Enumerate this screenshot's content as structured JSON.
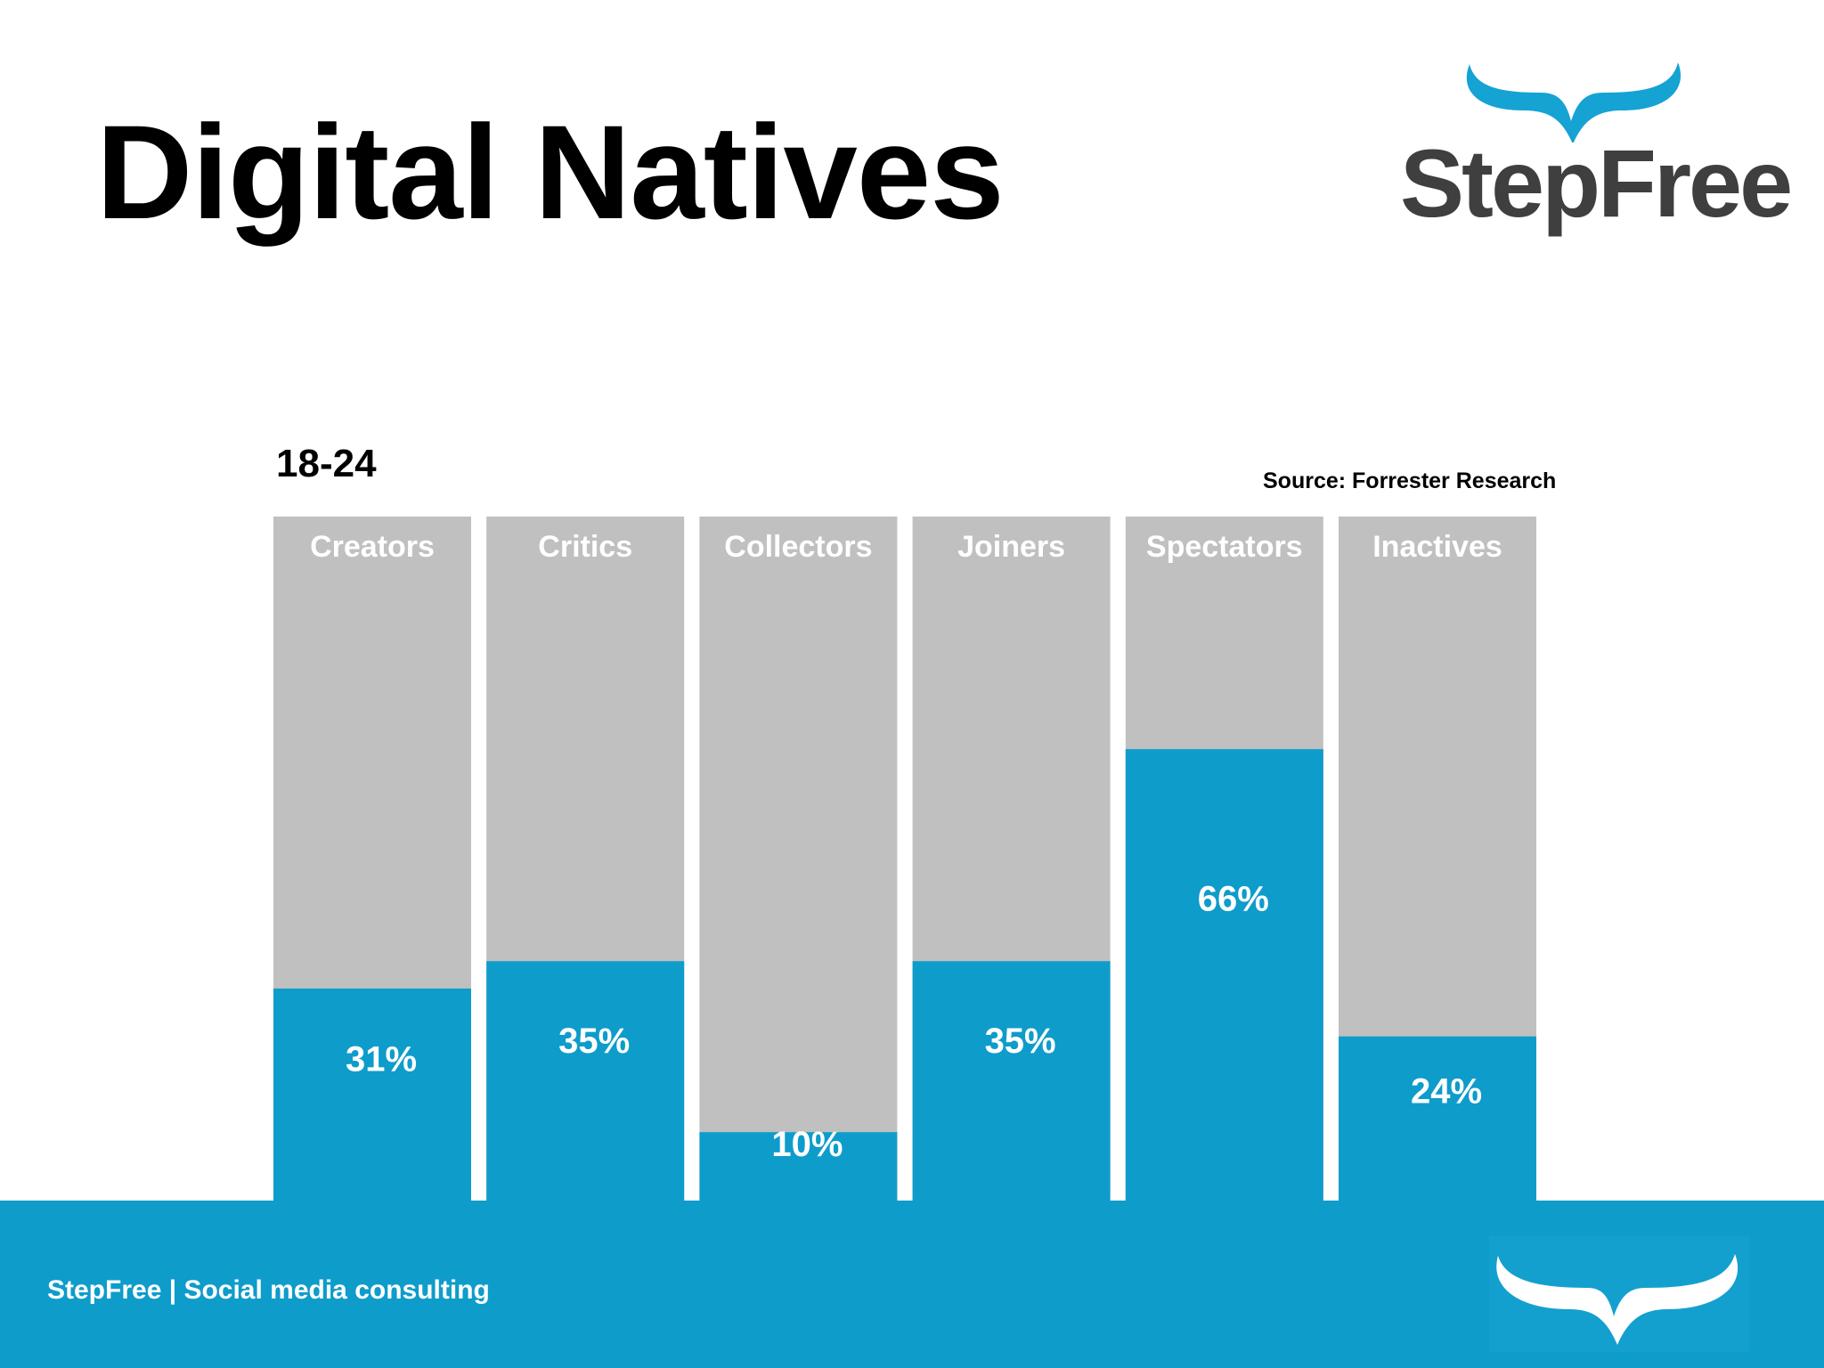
{
  "slide": {
    "title": "Digital Natives",
    "logo_text": "StepFree",
    "age_group": "18-24",
    "source": "Source: Forrester Research",
    "footer_text": "StepFree | Social media consulting"
  },
  "colors": {
    "accent": "#0e9ccb",
    "bar_background": "#c0c0c0",
    "logo_text": "#3f3f40",
    "label_text": "#ffffff"
  },
  "icons": {
    "logo_mark": "wings-icon",
    "footer_mark": "wings-icon"
  },
  "chart_data": {
    "type": "bar",
    "title": "",
    "xlabel": "",
    "ylabel": "",
    "ylim": [
      0,
      100
    ],
    "categories": [
      "Creators",
      "Critics",
      "Collectors",
      "Joiners",
      "Spectators",
      "Inactives"
    ],
    "values": [
      31,
      35,
      10,
      35,
      66,
      24
    ],
    "value_labels": [
      "31%",
      "35%",
      "10%",
      "35%",
      "66%",
      "24%"
    ],
    "grid": false,
    "legend": "none"
  }
}
